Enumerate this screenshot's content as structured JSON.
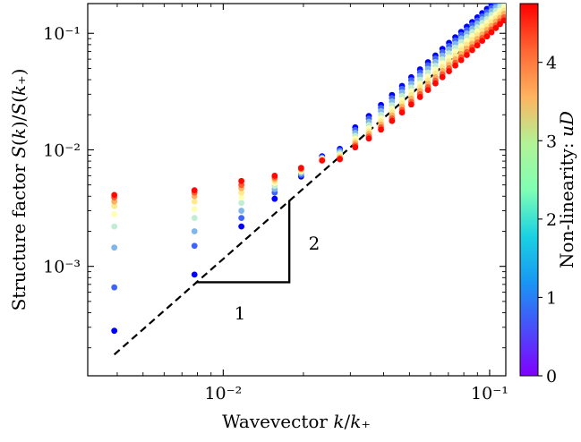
{
  "chart_data": {
    "type": "scatter",
    "xlabel": "Wavevector k/k₊",
    "ylabel": "Structure factor S(k)/S(k₊)",
    "xscale": "log",
    "yscale": "log",
    "xlim": [
      0.0031,
      0.115
    ],
    "ylim": [
      0.000115,
      0.18
    ],
    "x_ticks": [
      {
        "value": 0.01,
        "label": "10⁻²"
      },
      {
        "value": 0.1,
        "label": "10⁻¹"
      }
    ],
    "y_ticks": [
      {
        "value": 0.001,
        "label": "10⁻³"
      },
      {
        "value": 0.01,
        "label": "10⁻²"
      },
      {
        "value": 0.1,
        "label": "10⁻¹"
      }
    ],
    "grid": false,
    "colorbar": {
      "label": "Non-linearity: uD",
      "range": [
        0,
        4.75
      ],
      "ticks": [
        0,
        1,
        2,
        3,
        4
      ],
      "colormap": "rainbow"
    },
    "reference_line": {
      "style": "dashed",
      "slope": 2,
      "x": [
        0.0039,
        0.115
      ],
      "y": [
        0.000175,
        0.156
      ]
    },
    "slope_triangle": {
      "vertices": [
        [
          0.0079,
          0.00073
        ],
        [
          0.0177,
          0.00073
        ],
        [
          0.0177,
          0.0037
        ]
      ],
      "run_label": "1",
      "rise_label": "2"
    },
    "k_values": [
      0.0039,
      0.0078,
      0.0117,
      0.0156,
      0.0196,
      0.0235,
      0.0274,
      0.0313,
      0.0352,
      0.0391,
      0.043,
      0.0469,
      0.0508,
      0.0548,
      0.0587,
      0.0626,
      0.0665,
      0.0704,
      0.0743,
      0.0782,
      0.0821,
      0.086,
      0.0899,
      0.0938,
      0.0977,
      0.1016,
      0.1055,
      0.1094,
      0.1133
    ],
    "series": [
      {
        "uD": 0.0,
        "values": [
          0.00028,
          0.00085,
          0.0022,
          0.0038,
          0.0059,
          0.0088,
          0.0102,
          0.0156,
          0.0195,
          0.0243,
          0.0296,
          0.0354,
          0.042,
          0.049,
          0.0565,
          0.0645,
          0.0735,
          0.0828,
          0.0925,
          0.1028,
          0.114,
          0.125,
          0.137,
          0.149,
          0.162,
          0.175,
          0.19,
          0.205,
          0.22
        ]
      },
      {
        "uD": 0.6,
        "values": [
          0.00066,
          0.0015,
          0.0026,
          0.0043,
          0.0061,
          0.0086,
          0.0099,
          0.0148,
          0.0185,
          0.0229,
          0.0278,
          0.0334,
          0.0396,
          0.0462,
          0.0532,
          0.0608,
          0.069,
          0.0778,
          0.087,
          0.0968,
          0.107,
          0.118,
          0.129,
          0.14,
          0.152,
          0.165,
          0.178,
          0.192,
          0.207
        ]
      },
      {
        "uD": 1.2,
        "values": [
          0.00145,
          0.002,
          0.003,
          0.0046,
          0.0063,
          0.0085,
          0.0096,
          0.014,
          0.0174,
          0.0215,
          0.026,
          0.0312,
          0.037,
          0.0432,
          0.0497,
          0.0568,
          0.0645,
          0.0727,
          0.0813,
          0.0905,
          0.1,
          0.11,
          0.121,
          0.132,
          0.143,
          0.155,
          0.167,
          0.18,
          0.194
        ]
      },
      {
        "uD": 1.8,
        "values": [
          0.0022,
          0.0026,
          0.0035,
          0.0049,
          0.0065,
          0.0084,
          0.0093,
          0.0132,
          0.0163,
          0.02,
          0.0242,
          0.029,
          0.0343,
          0.04,
          0.046,
          0.0527,
          0.0598,
          0.0673,
          0.0754,
          0.0839,
          0.093,
          0.1025,
          0.1125,
          0.123,
          0.133,
          0.144,
          0.156,
          0.168,
          0.181
        ]
      },
      {
        "uD": 2.4,
        "values": [
          0.0028,
          0.0031,
          0.0039,
          0.0052,
          0.0066,
          0.0083,
          0.009,
          0.0125,
          0.0153,
          0.0186,
          0.0225,
          0.0268,
          0.0318,
          0.037,
          0.0426,
          0.0488,
          0.0553,
          0.0622,
          0.0697,
          0.0776,
          0.086,
          0.095,
          0.104,
          0.114,
          0.124,
          0.134,
          0.145,
          0.156,
          0.168
        ]
      },
      {
        "uD": 3.0,
        "values": [
          0.0033,
          0.0036,
          0.0043,
          0.0054,
          0.0067,
          0.0082,
          0.0088,
          0.0119,
          0.0144,
          0.0175,
          0.021,
          0.025,
          0.0295,
          0.0344,
          0.0396,
          0.0452,
          0.0513,
          0.0577,
          0.0646,
          0.0719,
          0.0797,
          0.088,
          0.0966,
          0.1058,
          0.115,
          0.125,
          0.135,
          0.146,
          0.157
        ]
      },
      {
        "uD": 3.6,
        "values": [
          0.0036,
          0.004,
          0.0047,
          0.0056,
          0.0068,
          0.0082,
          0.0086,
          0.0114,
          0.0137,
          0.0165,
          0.0197,
          0.0234,
          0.0275,
          0.032,
          0.0368,
          0.042,
          0.0476,
          0.0535,
          0.0599,
          0.0666,
          0.0738,
          0.0814,
          0.0894,
          0.0978,
          0.107,
          0.116,
          0.126,
          0.136,
          0.147
        ]
      },
      {
        "uD": 4.2,
        "values": [
          0.0039,
          0.0043,
          0.005,
          0.0058,
          0.0069,
          0.0081,
          0.0084,
          0.0109,
          0.013,
          0.0156,
          0.0186,
          0.022,
          0.0258,
          0.03,
          0.0345,
          0.0393,
          0.0445,
          0.05,
          0.0559,
          0.0622,
          0.0689,
          0.076,
          0.0834,
          0.0912,
          0.0995,
          0.108,
          0.117,
          0.127,
          0.137
        ]
      },
      {
        "uD": 4.7,
        "values": [
          0.0041,
          0.0045,
          0.0054,
          0.006,
          0.007,
          0.0081,
          0.0083,
          0.0105,
          0.0125,
          0.0149,
          0.0177,
          0.0209,
          0.0245,
          0.0284,
          0.0326,
          0.0372,
          0.0421,
          0.0473,
          0.0529,
          0.0588,
          0.0651,
          0.0718,
          0.0788,
          0.0862,
          0.094,
          0.102,
          0.111,
          0.12,
          0.129
        ]
      }
    ]
  }
}
